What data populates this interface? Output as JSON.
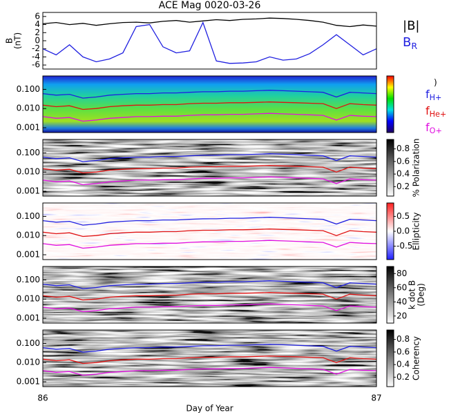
{
  "chart_data": [
    {
      "type": "line",
      "title": "ACE Mag 0020-03-26",
      "ylabel": [
        "B",
        "(nT)"
      ],
      "x": [
        86,
        86.04,
        86.08,
        86.12,
        86.16,
        86.2,
        86.24,
        86.28,
        86.32,
        86.36,
        86.4,
        86.44,
        86.48,
        86.52,
        86.56,
        86.6,
        86.64,
        86.68,
        86.72,
        86.76,
        86.8,
        86.84,
        86.88,
        86.92,
        86.96,
        87
      ],
      "xlim": [
        86,
        87
      ],
      "ylim": [
        -7,
        7
      ],
      "yticks": [
        -6,
        -4,
        -2,
        0,
        2,
        4,
        6
      ],
      "series": [
        {
          "name": "|B|",
          "color": "#000000",
          "values": [
            4.2,
            4.5,
            4.0,
            4.3,
            3.8,
            4.2,
            4.5,
            4.6,
            4.4,
            4.8,
            5.0,
            4.6,
            4.9,
            5.2,
            5.0,
            5.3,
            5.4,
            5.6,
            5.5,
            5.3,
            5.0,
            4.6,
            3.8,
            3.5,
            3.9,
            3.6
          ]
        },
        {
          "name": "B",
          "subscript": "R",
          "color": "#1f1fe0",
          "values": [
            -2.0,
            -3.5,
            -1.0,
            -4.0,
            -5.2,
            -4.5,
            -3.0,
            3.5,
            4.0,
            -1.5,
            -3.0,
            -2.5,
            4.5,
            -5.0,
            -5.6,
            -5.5,
            -5.2,
            -4.0,
            -4.8,
            -4.5,
            -3.2,
            -1.0,
            1.5,
            -1.0,
            -3.5,
            -2.0
          ]
        }
      ]
    },
    {
      "type": "spectrogram",
      "zlabel": [
        ")"
      ],
      "x": [
        86,
        86.04,
        86.08,
        86.12,
        86.16,
        86.2,
        86.24,
        86.28,
        86.32,
        86.36,
        86.4,
        86.44,
        86.48,
        86.52,
        86.56,
        86.6,
        86.64,
        86.68,
        86.72,
        86.76,
        86.8,
        86.84,
        86.88,
        86.92,
        86.96,
        87
      ],
      "xlim": [
        86,
        87
      ],
      "ylim": [
        0.00056,
        0.5
      ],
      "log_y": true,
      "yticks": [
        {
          "value": 0.001,
          "label": "0.001"
        },
        {
          "value": 0.01,
          "label": "0.010"
        },
        {
          "value": 0.1,
          "label": "0.100"
        }
      ],
      "series": [
        {
          "name": "f",
          "subscript": "H+",
          "color": "#1f1fe0",
          "values": [
            0.06,
            0.05,
            0.055,
            0.035,
            0.04,
            0.05,
            0.055,
            0.06,
            0.06,
            0.065,
            0.065,
            0.07,
            0.075,
            0.075,
            0.08,
            0.08,
            0.085,
            0.09,
            0.085,
            0.08,
            0.075,
            0.07,
            0.04,
            0.07,
            0.065,
            0.06
          ]
        },
        {
          "name": "f",
          "subscript": "He+",
          "color": "#e01010",
          "values": [
            0.015,
            0.0125,
            0.014,
            0.009,
            0.01,
            0.0125,
            0.014,
            0.015,
            0.015,
            0.016,
            0.016,
            0.018,
            0.019,
            0.019,
            0.02,
            0.02,
            0.021,
            0.022,
            0.021,
            0.02,
            0.019,
            0.018,
            0.01,
            0.018,
            0.016,
            0.015
          ]
        },
        {
          "name": "f",
          "subscript": "O+",
          "color": "#e010e0",
          "values": [
            0.0038,
            0.0031,
            0.0034,
            0.0022,
            0.0025,
            0.0031,
            0.0034,
            0.0038,
            0.0038,
            0.004,
            0.004,
            0.0044,
            0.0047,
            0.0047,
            0.005,
            0.005,
            0.0053,
            0.0056,
            0.0053,
            0.005,
            0.0047,
            0.0044,
            0.0025,
            0.0044,
            0.004,
            0.0038
          ]
        }
      ]
    },
    {
      "type": "spectrogram",
      "colormap": "gray",
      "zlabel": [
        "% Polarization"
      ],
      "zlim": [
        0.05,
        0.95
      ],
      "zticks": [
        0.2,
        0.4,
        0.6,
        0.8
      ]
    },
    {
      "type": "spectrogram",
      "colormap": "redblue",
      "zlabel": [
        "Ellipticity"
      ],
      "zlim": [
        -0.95,
        0.95
      ],
      "zticks": [
        -0.5,
        {
          "value": 0,
          "label": "0.0"
        },
        0.5
      ]
    },
    {
      "type": "spectrogram",
      "colormap": "gray",
      "zlabel": [
        "k dot B",
        "(Deg)"
      ],
      "zlim": [
        10,
        90
      ],
      "zticks": [
        20,
        40,
        60,
        80
      ]
    },
    {
      "type": "spectrogram",
      "colormap": "gray",
      "zlabel": [
        "Coherency"
      ],
      "zlim": [
        0.05,
        0.95
      ],
      "zticks": [
        0.2,
        0.4,
        0.6,
        0.8
      ],
      "xticks": [
        86,
        87
      ],
      "xlabel": "Day of Year"
    }
  ]
}
